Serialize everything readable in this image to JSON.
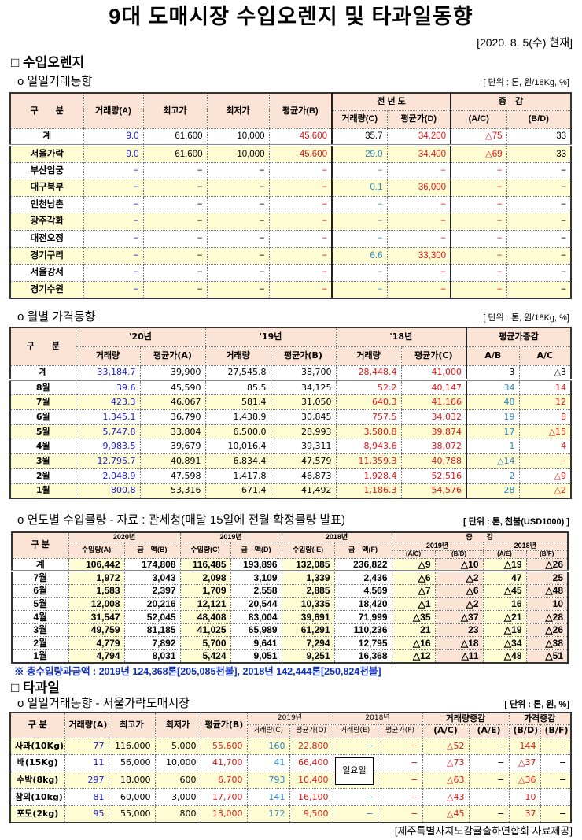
{
  "title": "9대 도매시장 수입오렌지 및 타과일동향",
  "date": "[2020. 8. 5(수) 현재]",
  "orange": {
    "heading": "□ 수입오렌지",
    "daily": {
      "subtitle": "o 일일거래동향",
      "unit": "[ 단위 : 톤, 원/18Kg, %]",
      "headers": {
        "gubun": "구　　분",
        "qty_a": "거래량(A)",
        "high": "최고가",
        "low": "최저가",
        "avg_b": "평균가(B)",
        "prev": "전 년 도",
        "qty_c": "거래량(C)",
        "avg_d": "평균가(D)",
        "change": "증　감",
        "ac": "(A/C)",
        "bd": "(B/D)"
      },
      "rows": [
        [
          "계",
          "9.0",
          "61,600",
          "10,000",
          "45,600",
          "35.7",
          "34,200",
          "△75",
          "33"
        ],
        [
          "서울가락",
          "9.0",
          "61,600",
          "10,000",
          "45,600",
          "29.0",
          "34,400",
          "△69",
          "33"
        ],
        [
          "부산엄궁",
          "−",
          "−",
          "−",
          "−",
          "−",
          "−",
          "−",
          "−"
        ],
        [
          "대구북부",
          "−",
          "−",
          "−",
          "−",
          "0.1",
          "36,000",
          "−",
          "−"
        ],
        [
          "인천남촌",
          "−",
          "−",
          "−",
          "−",
          "−",
          "−",
          "−",
          "−"
        ],
        [
          "광주각화",
          "−",
          "−",
          "−",
          "−",
          "−",
          "−",
          "−",
          "−"
        ],
        [
          "대전오정",
          "−",
          "−",
          "−",
          "−",
          "−",
          "−",
          "−",
          "−"
        ],
        [
          "경기구리",
          "−",
          "−",
          "−",
          "−",
          "6.6",
          "33,300",
          "−",
          "−"
        ],
        [
          "서울강서",
          "−",
          "−",
          "−",
          "−",
          "−",
          "−",
          "−",
          "−"
        ],
        [
          "경기수원",
          "−",
          "−",
          "−",
          "−",
          "−",
          "−",
          "−",
          "−"
        ]
      ]
    },
    "monthly": {
      "subtitle": "o 월별 가격동향",
      "unit": "[ 단위 : 톤, 원/18Kg, %]",
      "headers": {
        "gubun": "구　　분",
        "y20": "'20년",
        "y19": "'19년",
        "y18": "'18년",
        "chg": "평균가증감",
        "qty": "거래량",
        "avg_a": "평균가(A)",
        "avg_b": "평균가(B)",
        "avg_c": "평균가(C)",
        "ab": "A/B",
        "ac": "A/C"
      },
      "rows": [
        [
          "계",
          "33,184.7",
          "39,900",
          "27,545.8",
          "38,700",
          "28,448.4",
          "41,000",
          "3",
          "△3"
        ],
        [
          "8월",
          "39.6",
          "45,590",
          "85.5",
          "34,125",
          "52.2",
          "40,147",
          "34",
          "14"
        ],
        [
          "7월",
          "423.3",
          "46,067",
          "581.4",
          "31,050",
          "640.3",
          "41,166",
          "48",
          "12"
        ],
        [
          "6월",
          "1,345.1",
          "36,790",
          "1,438.9",
          "30,845",
          "757.5",
          "34,032",
          "19",
          "8"
        ],
        [
          "5월",
          "5,747.8",
          "33,804",
          "6,500.0",
          "28,993",
          "3,580.8",
          "39,874",
          "17",
          "△15"
        ],
        [
          "4월",
          "9,983.5",
          "39,679",
          "10,016.4",
          "39,311",
          "8,943.6",
          "38,072",
          "1",
          "4"
        ],
        [
          "3월",
          "12,795.7",
          "40,891",
          "6,834.4",
          "47,579",
          "11,359.3",
          "40,788",
          "△14",
          "−"
        ],
        [
          "2월",
          "2,048.9",
          "47,598",
          "1,417.8",
          "46,873",
          "1,928.4",
          "52,516",
          "2",
          "△9"
        ],
        [
          "1월",
          "800.8",
          "53,316",
          "671.4",
          "41,492",
          "1,186.3",
          "54,576",
          "28",
          "△2"
        ]
      ]
    },
    "imports": {
      "subtitle": "o 연도별 수입물량 - 자료 : 관세청(매달 15일에 전월 확정물량 발표)",
      "unit": "[ 단위 : 톤, 천불(USD1000) ]",
      "headers": {
        "gubun": "구 분",
        "y2020": "2020년",
        "y2019": "2019년",
        "y2018": "2018년",
        "chg": "증　　감",
        "chg2019": "2019년",
        "chg2018": "2018년",
        "qa": "수입량(A)",
        "ab": "금　액(B)",
        "qc": "수입량(C)",
        "ad": "금　액(D)",
        "qe": "수입량( E)",
        "af": "금　액(F)",
        "ac": "(A/C)",
        "bd": "(B/D)",
        "ae": "(A/E)",
        "bf": "(B/F)"
      },
      "rows": [
        [
          "계",
          "106,442",
          "174,808",
          "116,485",
          "193,896",
          "132,085",
          "236,822",
          "△9",
          "△10",
          "△19",
          "△26"
        ],
        [
          "7월",
          "1,972",
          "3,043",
          "2,098",
          "3,109",
          "1,339",
          "2,436",
          "△6",
          "△2",
          "47",
          "25"
        ],
        [
          "6월",
          "1,583",
          "2,397",
          "1,709",
          "2,558",
          "2,885",
          "4,569",
          "△7",
          "△6",
          "△45",
          "△48"
        ],
        [
          "5월",
          "12,008",
          "20,216",
          "12,121",
          "20,544",
          "10,335",
          "18,420",
          "△1",
          "△2",
          "16",
          "10"
        ],
        [
          "4월",
          "31,547",
          "52,045",
          "48,408",
          "83,004",
          "39,691",
          "71,999",
          "△35",
          "△37",
          "△21",
          "△28"
        ],
        [
          "3월",
          "49,759",
          "81,185",
          "41,025",
          "65,989",
          "61,291",
          "110,236",
          "21",
          "23",
          "△19",
          "△26"
        ],
        [
          "2월",
          "4,779",
          "7,892",
          "5,700",
          "9,641",
          "7,294",
          "12,795",
          "△16",
          "△18",
          "△34",
          "△38"
        ],
        [
          "1월",
          "4,794",
          "8,031",
          "5,424",
          "9,051",
          "9,251",
          "16,368",
          "△12",
          "△11",
          "△48",
          "△51"
        ]
      ],
      "note": "※ 총수입량과금액 : 2019년 124,368톤[205,085천불],  2018년 142,444톤[250,824천불]"
    }
  },
  "other": {
    "heading": "□ 타과일",
    "subtitle": "o 일일거래동향 - 서울가락도매시장",
    "unit": "[ 단위 : 톤, 원, %]",
    "headers": {
      "gubun": "구 분",
      "qty_a": "거래량(A)",
      "high": "최고가",
      "low": "최저가",
      "avg_b": "평균가(B)",
      "y2019": "2019년",
      "y2018": "2018년",
      "qchg": "거래량증감",
      "pchg": "가격증감",
      "qc": "거래량(C)",
      "ad": "평균가(D)",
      "qe": "거래량(E)",
      "af": "평균가(F)",
      "ac": "(A/C)",
      "ae": "(A/E)",
      "bd": "(B/D)",
      "bf": "(B/F)"
    },
    "rows": [
      [
        "사과(10Kg)",
        "77",
        "116,000",
        "5,000",
        "55,600",
        "160",
        "22,800",
        "−",
        "−",
        "△52",
        "−",
        "144",
        "−"
      ],
      [
        "배(15Kg)",
        "11",
        "56,000",
        "10,000",
        "41,700",
        "41",
        "66,400",
        "",
        "−",
        "△73",
        "−",
        "△37",
        "−"
      ],
      [
        "수박(8kg)",
        "297",
        "18,000",
        "600",
        "6,700",
        "793",
        "10,400",
        "",
        "−",
        "△63",
        "−",
        "△36",
        "−"
      ],
      [
        "참외(10kg)",
        "81",
        "60,000",
        "3,000",
        "17,700",
        "141",
        "16,100",
        "−",
        "−",
        "△43",
        "−",
        "10",
        "−"
      ],
      [
        "포도(2kg)",
        "95",
        "55,000",
        "800",
        "13,000",
        "172",
        "9,500",
        "−",
        "−",
        "△45",
        "−",
        "37",
        "−"
      ]
    ],
    "sunday_label": "일요일"
  },
  "source": "[제주특별자치도감귤출하연합회 자료제공]"
}
